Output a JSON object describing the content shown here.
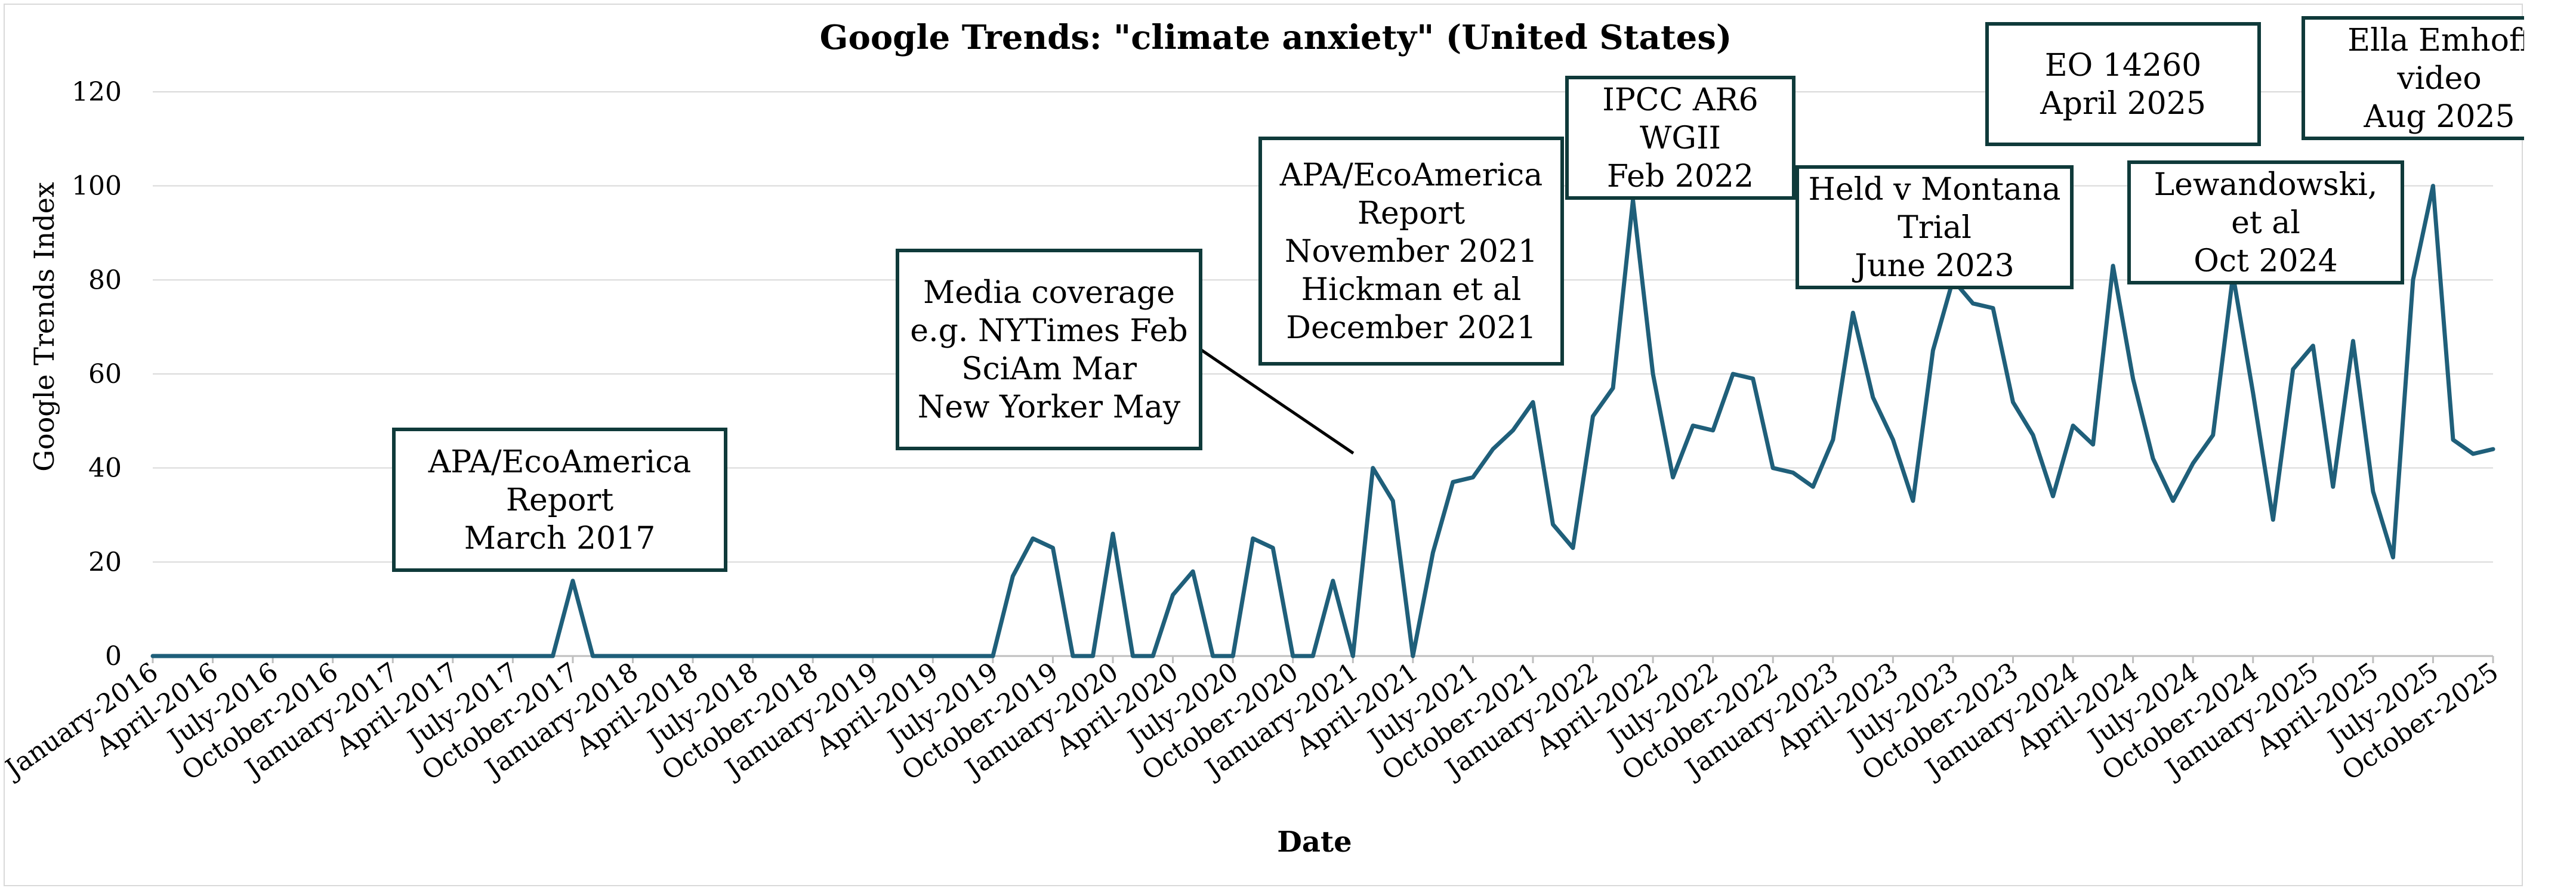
{
  "chart_data": {
    "type": "line",
    "title": "Google Trends: \"climate anxiety\" (United States)",
    "xlabel": "Date",
    "ylabel": "Google Trends Index",
    "ylim": [
      0,
      120
    ],
    "yticks": [
      0,
      20,
      40,
      60,
      80,
      100,
      120
    ],
    "grid": true,
    "legend": "none",
    "x_tick_labels": [
      "January-2016",
      "April-2016",
      "July-2016",
      "October-2016",
      "January-2017",
      "April-2017",
      "July-2017",
      "October-2017",
      "January-2018",
      "April-2018",
      "July-2018",
      "October-2018",
      "January-2019",
      "April-2019",
      "July-2019",
      "October-2019",
      "January-2020",
      "April-2020",
      "July-2020",
      "October-2020",
      "January-2021",
      "April-2021",
      "July-2021",
      "October-2021",
      "January-2022",
      "April-2022",
      "July-2022",
      "October-2022",
      "January-2023",
      "April-2023",
      "July-2023",
      "October-2023",
      "January-2024",
      "April-2024",
      "July-2024",
      "October-2024",
      "January-2025",
      "April-2025",
      "July-2025",
      "October-2025"
    ],
    "series": [
      {
        "name": "climate anxiety",
        "color": "#1f5f7a",
        "values": [
          0,
          0,
          0,
          0,
          0,
          0,
          0,
          0,
          0,
          0,
          0,
          0,
          0,
          0,
          0,
          0,
          0,
          0,
          0,
          0,
          0,
          16,
          0,
          0,
          0,
          0,
          0,
          0,
          0,
          0,
          0,
          0,
          0,
          0,
          0,
          0,
          0,
          0,
          0,
          0,
          0,
          0,
          0,
          17,
          25,
          23,
          0,
          0,
          26,
          0,
          0,
          13,
          18,
          0,
          0,
          25,
          23,
          0,
          0,
          16,
          0,
          40,
          33,
          0,
          22,
          37,
          38,
          44,
          48,
          54,
          28,
          23,
          51,
          57,
          97,
          60,
          38,
          49,
          48,
          60,
          59,
          40,
          39,
          36,
          46,
          73,
          55,
          46,
          33,
          65,
          80,
          75,
          74,
          54,
          47,
          34,
          49,
          45,
          83,
          59,
          42,
          33,
          41,
          47,
          81,
          56,
          29,
          61,
          66,
          36,
          67,
          35,
          21,
          80,
          100,
          46,
          43,
          44
        ]
      }
    ],
    "annotations": [
      {
        "lines": [
          "APA/EcoAmerica",
          "Report",
          "March 2017"
        ]
      },
      {
        "lines": [
          "Media coverage",
          "e.g. NYTimes Feb",
          "SciAm Mar",
          "New Yorker May"
        ]
      },
      {
        "lines": [
          "APA/EcoAmerica",
          "Report",
          "November 2021",
          "Hickman et al",
          "December 2021"
        ]
      },
      {
        "lines": [
          "IPCC AR6",
          "WGII",
          "Feb 2022"
        ]
      },
      {
        "lines": [
          "Held v Montana",
          "Trial",
          "June 2023"
        ]
      },
      {
        "lines": [
          "EO 14260",
          "April 2025"
        ]
      },
      {
        "lines": [
          "Lewandowski,",
          "et al",
          "Oct 2024"
        ]
      },
      {
        "lines": [
          "Ella Emhoff",
          "video",
          "Aug 2025"
        ]
      }
    ]
  }
}
